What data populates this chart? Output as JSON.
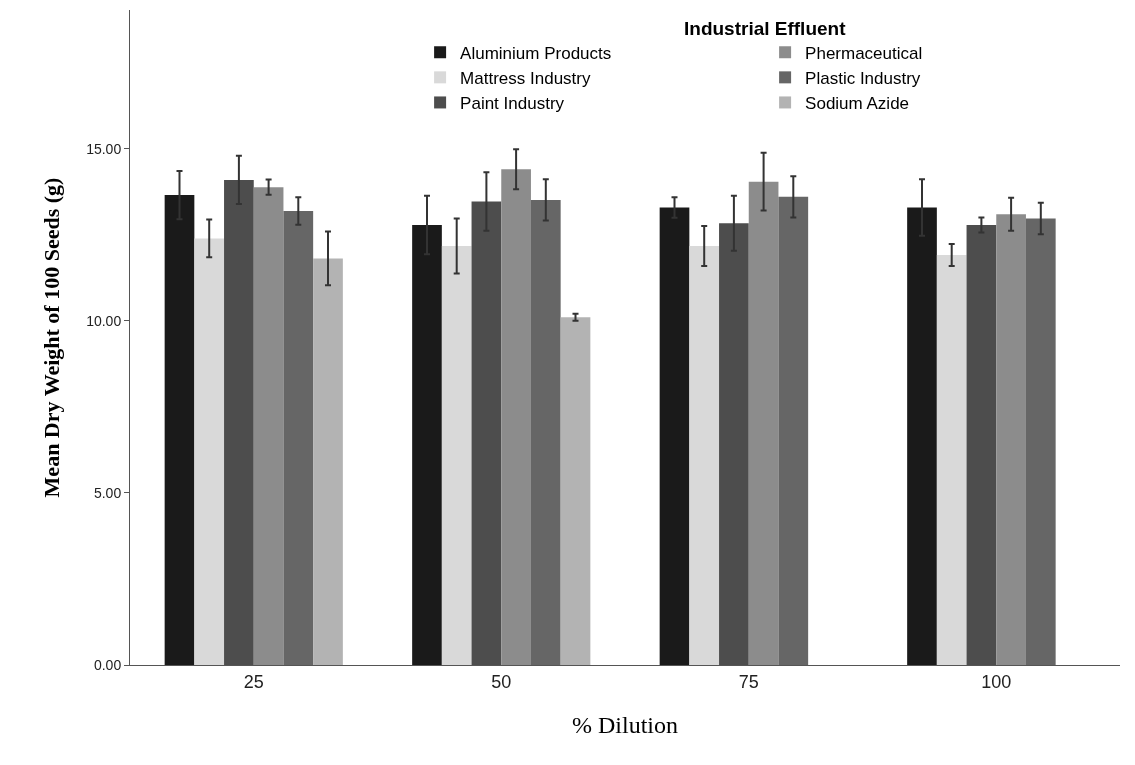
{
  "chart_data": {
    "type": "bar",
    "xlabel": "% Dilution",
    "ylabel": "Mean Dry Weight of 100 Seeds (g)",
    "legend_title": "Industrial Effluent",
    "categories": [
      "25",
      "50",
      "75",
      "100"
    ],
    "series": [
      {
        "name": "Aluminium Products",
        "color": "#1a1a1a",
        "values": [
          13.66,
          12.79,
          13.3,
          13.3
        ],
        "errors": [
          0.7,
          0.85,
          0.3,
          0.82
        ]
      },
      {
        "name": "Mattress Industry",
        "color": "#d9d9d9",
        "values": [
          12.4,
          12.18,
          12.18,
          11.92
        ],
        "errors": [
          0.55,
          0.8,
          0.58,
          0.32
        ]
      },
      {
        "name": "Paint Industry",
        "color": "#4d4d4d",
        "values": [
          14.1,
          13.47,
          12.84,
          12.79
        ],
        "errors": [
          0.7,
          0.85,
          0.8,
          0.22
        ]
      },
      {
        "name": "Phermaceutical",
        "color": "#8c8c8c",
        "values": [
          13.89,
          14.41,
          14.05,
          13.1
        ],
        "errors": [
          0.22,
          0.58,
          0.84,
          0.48
        ]
      },
      {
        "name": "Plastic Industry",
        "color": "#666666",
        "values": [
          13.2,
          13.52,
          13.61,
          12.98
        ],
        "errors": [
          0.4,
          0.6,
          0.6,
          0.46
        ]
      },
      {
        "name": "Sodium Azide",
        "color": "#b3b3b3",
        "values": [
          11.82,
          10.11,
          null,
          null
        ],
        "errors": [
          0.78,
          0.1,
          null,
          null
        ]
      }
    ],
    "ylim": [
      0,
      19.04
    ],
    "yticks": [
      {
        "value": 0,
        "label": "0.00"
      },
      {
        "value": 5,
        "label": "5.00"
      },
      {
        "value": 10,
        "label": "10.00"
      },
      {
        "value": 15,
        "label": "15.00"
      }
    ],
    "legend": "top right"
  }
}
